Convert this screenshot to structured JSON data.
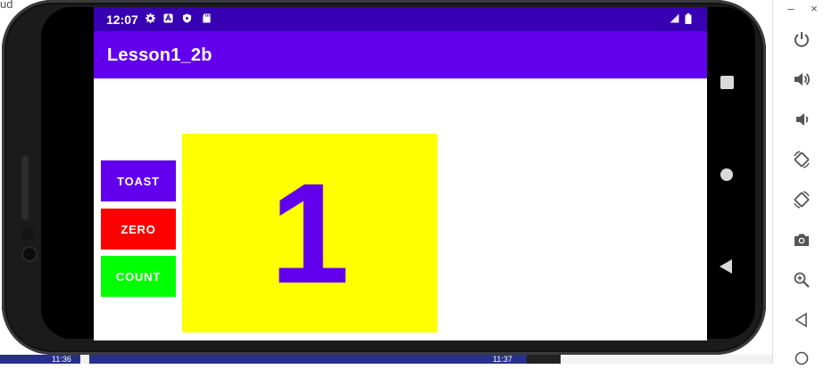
{
  "background": {
    "corner_text": "ud",
    "bottom_time_left": "11:36",
    "bottom_time_right": "11:37"
  },
  "status_bar": {
    "time": "12:07",
    "icons": [
      "gear-icon",
      "a-icon",
      "shield-icon",
      "sd-card-icon",
      "signal-icon",
      "battery-icon"
    ]
  },
  "app_bar": {
    "title": "Lesson1_2b"
  },
  "buttons": {
    "toast": "TOAST",
    "zero": "ZERO",
    "count": "COUNT"
  },
  "counter": {
    "value": "1"
  },
  "colors": {
    "status_bar": "#3700b3",
    "app_bar": "#6200ee",
    "toast_button": "#6200ee",
    "zero_button": "#ff0000",
    "count_button": "#00ff00",
    "count_box": "#ffff00",
    "count_text": "#6200ee"
  },
  "emulator_panel": {
    "minimize_label": "–",
    "close_label": "×",
    "controls": [
      "power-icon",
      "volume-up-icon",
      "volume-down-icon",
      "rotate-left-icon",
      "rotate-right-icon",
      "camera-icon",
      "zoom-icon",
      "back-icon",
      "home-icon"
    ]
  }
}
